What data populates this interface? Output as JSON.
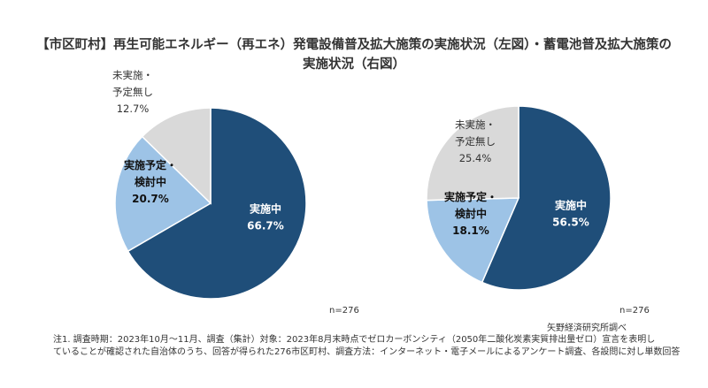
{
  "title": {
    "line1": "【市区町村】再生可能エネルギー（再エネ）発電設備普及拡大施策の実施状況（左図）・蓄電池普及拡大施策の",
    "line2": "実施状況（右図）"
  },
  "chart_data": [
    {
      "type": "pie",
      "slices": [
        {
          "label_lines": [
            "実施中"
          ],
          "value": 66.7,
          "value_text": "66.7%",
          "color": "#1f4e79"
        },
        {
          "label_lines": [
            "実施予定・",
            "検討中"
          ],
          "value": 20.7,
          "value_text": "20.7%",
          "color": "#9dc3e6"
        },
        {
          "label_lines": [
            "未実施・",
            "予定無し"
          ],
          "value": 12.7,
          "value_text": "12.7%",
          "color": "#d9d9d9"
        }
      ],
      "n_label": "n=276"
    },
    {
      "type": "pie",
      "slices": [
        {
          "label_lines": [
            "実施中"
          ],
          "value": 56.5,
          "value_text": "56.5%",
          "color": "#1f4e79"
        },
        {
          "label_lines": [
            "実施予定・",
            "検討中"
          ],
          "value": 18.1,
          "value_text": "18.1%",
          "color": "#9dc3e6"
        },
        {
          "label_lines": [
            "未実施・",
            "予定無し"
          ],
          "value": 25.4,
          "value_text": "25.4%",
          "color": "#d9d9d9"
        }
      ],
      "n_label": "n=276"
    }
  ],
  "source": "矢野経済研究所調べ",
  "note": {
    "line1": "注1. 調査時期：2023年10月～11月、調査（集計）対象：2023年8月末時点でゼロカーボンシティ（2050年二酸化炭素実質排出量ゼロ）宣言を表明し",
    "line2": "ていることが確認された自治体のうち、回答が得られた276市区町村、調査方法：インターネット・電子メールによるアンケート調査、各設問に対し単数回答"
  }
}
